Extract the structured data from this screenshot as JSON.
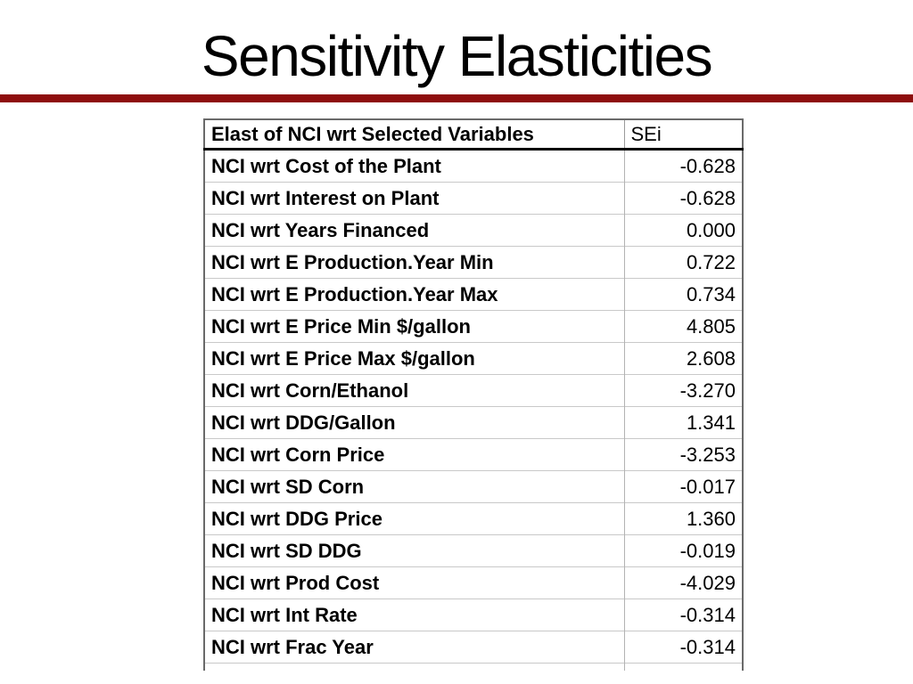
{
  "slide": {
    "title": "Sensitivity Elasticities"
  },
  "colors": {
    "accent_line": "#8e0d0d",
    "outer_border": "#6a6a6a",
    "header_separator": "#000000",
    "grid_line": "#c9c9c9",
    "text": "#000000",
    "background": "#ffffff"
  },
  "table": {
    "headers": [
      "Elast of NCI wrt Selected Variables",
      "SEi"
    ],
    "rows": [
      {
        "label": "NCI wrt Cost of the Plant",
        "value": "-0.628"
      },
      {
        "label": "NCI wrt Interest on Plant",
        "value": "-0.628"
      },
      {
        "label": "NCI wrt Years Financed",
        "value": "0.000"
      },
      {
        "label": "NCI wrt E Production.Year Min",
        "value": "0.722"
      },
      {
        "label": "NCI wrt E Production.Year Max",
        "value": "0.734"
      },
      {
        "label": "NCI wrt E Price Min $/gallon",
        "value": "4.805"
      },
      {
        "label": "NCI wrt E Price Max $/gallon",
        "value": "2.608"
      },
      {
        "label": "NCI wrt Corn/Ethanol",
        "value": "-3.270"
      },
      {
        "label": "NCI wrt DDG/Gallon",
        "value": "1.341"
      },
      {
        "label": "NCI wrt Corn Price",
        "value": "-3.253"
      },
      {
        "label": "NCI wrt SD Corn",
        "value": "-0.017"
      },
      {
        "label": "NCI wrt DDG Price",
        "value": "1.360"
      },
      {
        "label": "NCI wrt SD DDG",
        "value": "-0.019"
      },
      {
        "label": "NCI wrt Prod Cost",
        "value": "-4.029"
      },
      {
        "label": "NCI wrt Int Rate",
        "value": "-0.314"
      },
      {
        "label": "NCI wrt Frac Year",
        "value": "-0.314"
      }
    ]
  }
}
